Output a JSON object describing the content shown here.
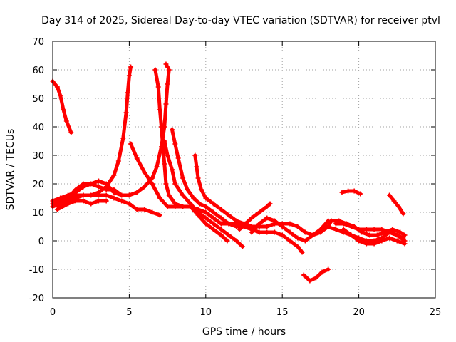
{
  "chart_data": {
    "type": "scatter",
    "title": "Day 314 of 2025, Sidereal Day-to-day VTEC variation (SDTVAR) for receiver ptvl",
    "xlabel": "GPS time / hours",
    "ylabel": "SDTVAR / TECUs",
    "xlim": [
      0,
      25
    ],
    "ylim": [
      -20,
      70
    ],
    "x_ticks": [
      0,
      5,
      10,
      15,
      20,
      25
    ],
    "y_ticks": [
      -20,
      -10,
      0,
      10,
      20,
      30,
      40,
      50,
      60,
      70
    ],
    "grid": true,
    "marker": "+",
    "color": "#ff0000",
    "series": [
      {
        "name": "arc-1",
        "points": [
          [
            0.0,
            56
          ],
          [
            0.3,
            54
          ],
          [
            0.5,
            51
          ],
          [
            0.7,
            46
          ],
          [
            0.9,
            42
          ],
          [
            1.2,
            38
          ]
        ]
      },
      {
        "name": "arc-2",
        "points": [
          [
            0.0,
            14
          ],
          [
            0.5,
            15
          ],
          [
            1.0,
            16
          ],
          [
            1.5,
            17
          ],
          [
            2.0,
            19
          ],
          [
            2.5,
            20
          ],
          [
            3.0,
            21
          ],
          [
            3.5,
            20
          ],
          [
            4.0,
            17
          ],
          [
            4.5,
            16
          ],
          [
            5.0,
            16
          ]
        ]
      },
      {
        "name": "arc-3",
        "points": [
          [
            0.0,
            12
          ],
          [
            0.5,
            13
          ],
          [
            1.0,
            14
          ],
          [
            1.5,
            15
          ],
          [
            2.0,
            16
          ],
          [
            2.5,
            16
          ],
          [
            3.0,
            17
          ],
          [
            3.5,
            19
          ],
          [
            4.0,
            23
          ],
          [
            4.3,
            28
          ],
          [
            4.6,
            36
          ],
          [
            4.8,
            45
          ],
          [
            4.9,
            52
          ],
          [
            5.0,
            58
          ],
          [
            5.1,
            61
          ]
        ]
      },
      {
        "name": "arc-4",
        "points": [
          [
            0.0,
            13
          ],
          [
            0.5,
            14
          ],
          [
            1.0,
            15
          ],
          [
            1.5,
            16
          ],
          [
            2.0,
            16
          ],
          [
            2.5,
            16
          ],
          [
            3.0,
            16
          ],
          [
            3.5,
            16
          ],
          [
            4.0,
            15
          ],
          [
            4.5,
            14
          ],
          [
            5.0,
            13
          ],
          [
            5.5,
            11
          ],
          [
            6.0,
            11
          ],
          [
            6.5,
            10
          ],
          [
            7.0,
            9
          ]
        ]
      },
      {
        "name": "arc-5",
        "points": [
          [
            0.3,
            11
          ],
          [
            1.0,
            13
          ],
          [
            1.5,
            14
          ],
          [
            2.0,
            14
          ],
          [
            2.5,
            13
          ],
          [
            3.0,
            14
          ],
          [
            3.5,
            14
          ]
        ]
      },
      {
        "name": "arc-6",
        "points": [
          [
            0.5,
            12
          ],
          [
            1.0,
            15
          ],
          [
            1.5,
            18
          ],
          [
            2.0,
            20
          ],
          [
            2.5,
            20
          ],
          [
            3.0,
            19
          ],
          [
            3.5,
            18
          ],
          [
            4.0,
            18
          ],
          [
            4.5,
            16
          ],
          [
            5.0,
            16
          ],
          [
            5.5,
            17
          ],
          [
            6.0,
            19
          ],
          [
            6.5,
            22
          ],
          [
            6.8,
            26
          ],
          [
            7.1,
            33
          ],
          [
            7.3,
            40
          ],
          [
            7.4,
            48
          ],
          [
            7.5,
            55
          ],
          [
            7.6,
            60
          ]
        ]
      },
      {
        "name": "arc-7",
        "points": [
          [
            5.1,
            34
          ],
          [
            5.5,
            29
          ],
          [
            6.0,
            24
          ],
          [
            6.5,
            20
          ],
          [
            7.0,
            15
          ],
          [
            7.5,
            12
          ],
          [
            8.0,
            12
          ],
          [
            8.5,
            12
          ],
          [
            9.0,
            12
          ],
          [
            9.5,
            11
          ],
          [
            10.0,
            10
          ],
          [
            10.5,
            8
          ],
          [
            11.0,
            6
          ],
          [
            11.5,
            6
          ],
          [
            12.0,
            6
          ],
          [
            12.5,
            5
          ]
        ]
      },
      {
        "name": "arc-8",
        "points": [
          [
            6.7,
            60
          ],
          [
            6.9,
            54
          ],
          [
            7.0,
            46
          ],
          [
            7.1,
            40
          ],
          [
            7.2,
            33
          ],
          [
            7.3,
            27
          ],
          [
            7.4,
            20
          ],
          [
            7.6,
            16
          ],
          [
            8.0,
            13
          ],
          [
            8.5,
            12
          ],
          [
            9.0,
            12
          ],
          [
            9.5,
            9
          ],
          [
            10.0,
            6
          ],
          [
            10.5,
            4
          ],
          [
            11.0,
            2
          ],
          [
            11.4,
            0
          ]
        ]
      },
      {
        "name": "arc-9",
        "points": [
          [
            7.4,
            62
          ],
          [
            7.5,
            61
          ]
        ]
      },
      {
        "name": "arc-10",
        "points": [
          [
            7.3,
            35
          ],
          [
            7.5,
            30
          ],
          [
            7.8,
            25
          ],
          [
            8.0,
            20
          ],
          [
            8.5,
            16
          ],
          [
            9.0,
            13
          ],
          [
            9.5,
            10
          ],
          [
            10.0,
            8
          ],
          [
            10.5,
            6
          ],
          [
            11.0,
            4
          ],
          [
            11.5,
            2
          ],
          [
            12.0,
            0
          ],
          [
            12.4,
            -2
          ]
        ]
      },
      {
        "name": "arc-11",
        "points": [
          [
            7.8,
            39
          ],
          [
            8.0,
            34
          ],
          [
            8.2,
            29
          ],
          [
            8.5,
            22
          ],
          [
            8.8,
            18
          ],
          [
            9.2,
            15
          ],
          [
            9.6,
            13
          ],
          [
            10.0,
            12
          ],
          [
            10.5,
            10
          ],
          [
            11.0,
            8
          ],
          [
            11.5,
            6
          ],
          [
            12.0,
            5
          ],
          [
            12.5,
            5
          ],
          [
            13.0,
            4
          ],
          [
            13.5,
            3
          ],
          [
            14.0,
            3
          ],
          [
            14.5,
            3
          ],
          [
            15.0,
            2
          ],
          [
            15.5,
            0
          ],
          [
            16.0,
            -2
          ],
          [
            16.3,
            -4
          ]
        ]
      },
      {
        "name": "arc-12",
        "points": [
          [
            9.3,
            30
          ],
          [
            9.4,
            26
          ],
          [
            9.5,
            22
          ],
          [
            9.7,
            18
          ],
          [
            10.0,
            15
          ],
          [
            10.5,
            13
          ],
          [
            11.0,
            11
          ],
          [
            11.5,
            9
          ],
          [
            12.0,
            7
          ],
          [
            12.5,
            6
          ],
          [
            13.0,
            5
          ],
          [
            13.5,
            5
          ],
          [
            14.0,
            5
          ],
          [
            14.5,
            6
          ],
          [
            15.0,
            6
          ],
          [
            15.5,
            6
          ],
          [
            16.0,
            5
          ],
          [
            16.5,
            3
          ],
          [
            17.0,
            2
          ],
          [
            17.5,
            3
          ],
          [
            18.0,
            5
          ],
          [
            18.2,
            7
          ]
        ]
      },
      {
        "name": "arc-13",
        "points": [
          [
            12.2,
            4
          ],
          [
            12.6,
            6
          ],
          [
            13.0,
            8
          ],
          [
            13.5,
            10
          ],
          [
            14.0,
            12
          ],
          [
            14.2,
            13
          ]
        ]
      },
      {
        "name": "arc-14",
        "points": [
          [
            13.0,
            3
          ],
          [
            13.5,
            6
          ],
          [
            14.0,
            8
          ],
          [
            14.5,
            7
          ],
          [
            15.0,
            5
          ],
          [
            15.5,
            3
          ],
          [
            16.0,
            1
          ],
          [
            16.5,
            0
          ],
          [
            17.0,
            2
          ],
          [
            17.5,
            4
          ],
          [
            18.0,
            7
          ]
        ]
      },
      {
        "name": "arc-15",
        "points": [
          [
            16.4,
            -12
          ],
          [
            16.8,
            -14
          ],
          [
            17.2,
            -13
          ],
          [
            17.6,
            -11
          ],
          [
            18.0,
            -10
          ]
        ]
      },
      {
        "name": "arc-16",
        "points": [
          [
            17.9,
            5
          ],
          [
            18.5,
            4
          ],
          [
            19.0,
            3
          ],
          [
            19.5,
            2
          ],
          [
            20.0,
            1
          ],
          [
            20.5,
            0
          ],
          [
            21.0,
            0
          ],
          [
            21.5,
            1
          ],
          [
            22.0,
            3
          ],
          [
            22.5,
            2
          ],
          [
            22.9,
            1
          ]
        ]
      },
      {
        "name": "arc-17",
        "points": [
          [
            18.2,
            7
          ],
          [
            18.7,
            7
          ],
          [
            19.2,
            6
          ],
          [
            19.7,
            5
          ],
          [
            20.2,
            3
          ],
          [
            20.7,
            2
          ],
          [
            21.2,
            2
          ],
          [
            21.7,
            3
          ],
          [
            22.2,
            4
          ],
          [
            22.7,
            3
          ],
          [
            23.0,
            2
          ]
        ]
      },
      {
        "name": "arc-18",
        "points": [
          [
            18.5,
            6
          ],
          [
            19.0,
            6
          ],
          [
            19.5,
            5
          ],
          [
            20.0,
            4
          ],
          [
            20.5,
            4
          ],
          [
            21.0,
            4
          ],
          [
            21.5,
            4
          ],
          [
            22.0,
            3
          ],
          [
            22.5,
            2
          ],
          [
            23.0,
            0
          ]
        ]
      },
      {
        "name": "arc-19",
        "points": [
          [
            19.0,
            4
          ],
          [
            19.5,
            2
          ],
          [
            20.0,
            0
          ],
          [
            20.5,
            -1
          ],
          [
            21.0,
            -1
          ],
          [
            21.5,
            0
          ],
          [
            22.0,
            1
          ],
          [
            22.5,
            0
          ],
          [
            23.0,
            -1
          ]
        ]
      },
      {
        "name": "arc-20",
        "points": [
          [
            18.9,
            17
          ],
          [
            19.3,
            17.5
          ],
          [
            19.7,
            17.5
          ],
          [
            20.1,
            16.5
          ]
        ]
      },
      {
        "name": "arc-21",
        "points": [
          [
            22.0,
            16
          ],
          [
            22.3,
            14
          ],
          [
            22.6,
            12
          ],
          [
            22.9,
            9.5
          ]
        ]
      }
    ]
  }
}
